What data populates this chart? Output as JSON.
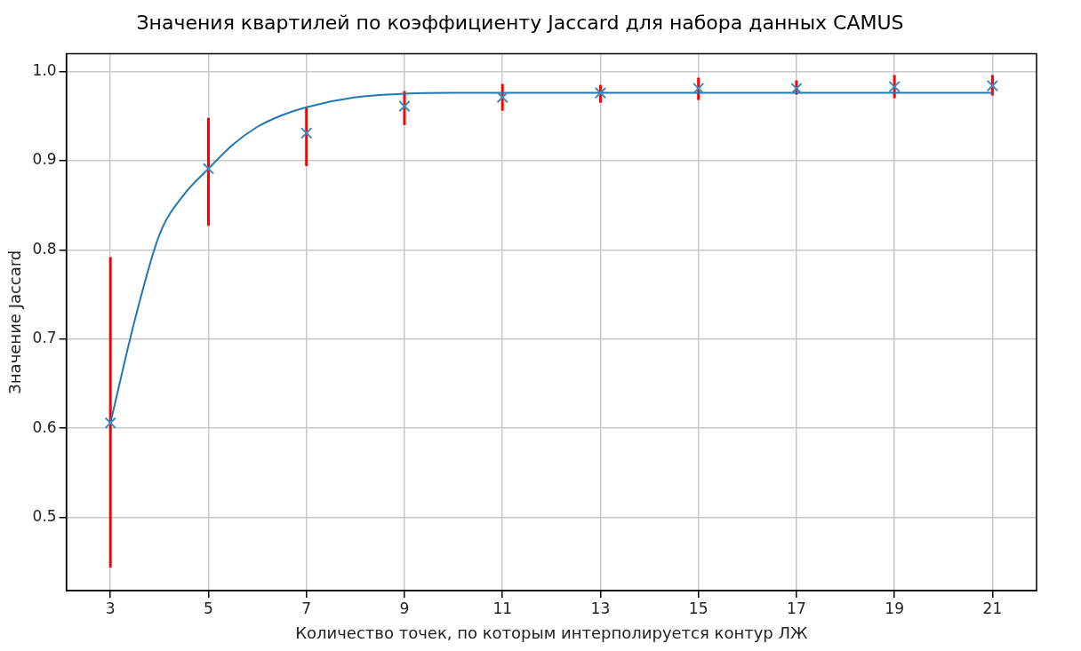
{
  "chart_data": {
    "type": "scatter",
    "title": "Значения квартилей по коэффициенту Jaccard для набора данных CAMUS",
    "xlabel": "Количество точек, по которым интерполируется контур ЛЖ",
    "ylabel": "Значение Jaccard",
    "x": [
      3,
      5,
      7,
      9,
      11,
      13,
      15,
      17,
      19,
      21
    ],
    "series": [
      {
        "color": "#3b8bc2",
        "marker": "cross",
        "values": [
          0.606,
          0.891,
          0.931,
          0.961,
          0.971,
          0.976,
          0.981,
          0.981,
          0.983,
          0.984
        ],
        "errors": [
          [
            0.444,
            0.792
          ],
          [
            0.827,
            0.948
          ],
          [
            0.894,
            0.96
          ],
          [
            0.94,
            0.978
          ],
          [
            0.956,
            0.986
          ],
          [
            0.965,
            0.985
          ],
          [
            0.968,
            0.993
          ],
          [
            0.974,
            0.99
          ],
          [
            0.97,
            0.996
          ],
          [
            0.973,
            0.996
          ]
        ]
      },
      {
        "type": "line",
        "color": "#1f77b4",
        "marker": "none",
        "line_style": "solid",
        "x": [
          3,
          3.5,
          4,
          4.5,
          5,
          5.5,
          6,
          6.5,
          7,
          8,
          9,
          10,
          11,
          21
        ],
        "values": [
          0.606,
          0.722,
          0.817,
          0.862,
          0.891,
          0.918,
          0.938,
          0.951,
          0.96,
          0.971,
          0.975,
          0.976,
          0.976,
          0.976
        ]
      }
    ],
    "xlim": [
      2.1,
      21.9
    ],
    "xticks": [
      3,
      5,
      7,
      9,
      11,
      13,
      15,
      17,
      19,
      21
    ],
    "ylim": [
      0.418,
      1.02
    ],
    "yticks": [
      0.5,
      0.6,
      0.7,
      0.8,
      0.9,
      {
        "value": 1,
        "label": "1.0"
      }
    ],
    "grid": true,
    "legend": false
  }
}
